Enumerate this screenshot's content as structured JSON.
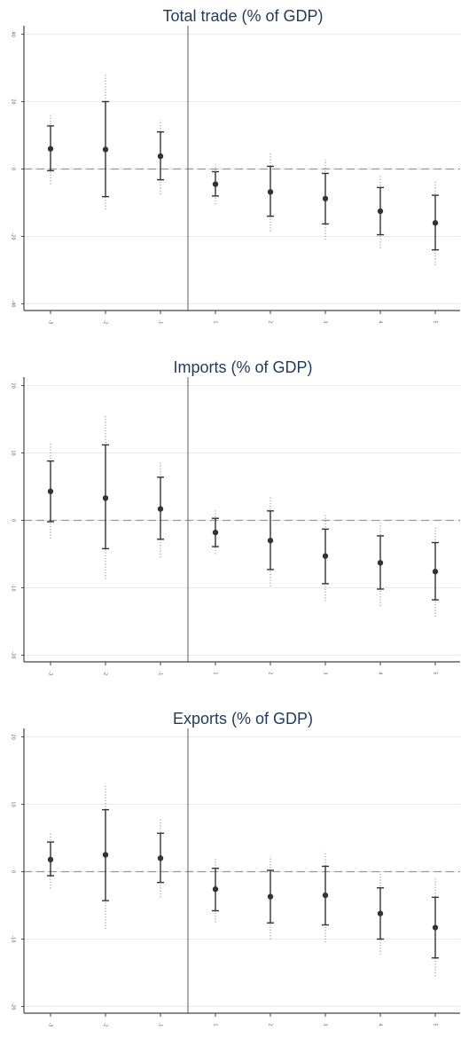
{
  "chart_data": [
    {
      "type": "scatter",
      "title": "Total trade  (% of GDP)",
      "x_ticks": [
        "-3",
        "-2",
        "-1",
        "1",
        "2",
        "3",
        "4",
        "5"
      ],
      "ylim": [
        -42,
        42
      ],
      "y_ticks": [
        40,
        20,
        0,
        -20,
        -40
      ],
      "y_tick_labels": [
        "40",
        "20",
        "0",
        "-20",
        "-40"
      ],
      "reference_line": 0,
      "event_line": "between -1 and 1",
      "grid": true,
      "series": [
        {
          "estimate": [
            6.0,
            5.8,
            3.8,
            -4.5,
            -6.8,
            -8.8,
            -12.5,
            -16.0
          ],
          "ci_inner": [
            [
              -0.5,
              12.8
            ],
            [
              -8.2,
              20.0
            ],
            [
              -3.2,
              11.0
            ],
            [
              -8.0,
              -0.8
            ],
            [
              -14.0,
              0.8
            ],
            [
              -16.3,
              -1.3
            ],
            [
              -19.5,
              -5.5
            ],
            [
              -24.0,
              -7.8
            ]
          ],
          "ci_outer": [
            [
              -4.5,
              16.0
            ],
            [
              -12.0,
              28.5
            ],
            [
              -7.5,
              14.5
            ],
            [
              -10.5,
              1.5
            ],
            [
              -18.5,
              5.0
            ],
            [
              -21.0,
              2.8
            ],
            [
              -23.5,
              -1.5
            ],
            [
              -28.5,
              -3.5
            ]
          ]
        }
      ]
    },
    {
      "type": "scatter",
      "title": "Imports  (% of GDP)",
      "x_ticks": [
        "-3",
        "-2",
        "-1",
        "1",
        "2",
        "3",
        "4",
        "5"
      ],
      "ylim": [
        -21,
        21
      ],
      "y_ticks": [
        20,
        10,
        0,
        -10,
        -20
      ],
      "y_tick_labels": [
        "20",
        "10",
        "0",
        "-10",
        "-20"
      ],
      "reference_line": 0,
      "event_line": "between -1 and 1",
      "grid": true,
      "series": [
        {
          "estimate": [
            4.3,
            3.3,
            1.7,
            -1.8,
            -3.0,
            -5.3,
            -6.3,
            -7.6
          ],
          "ci_inner": [
            [
              -0.2,
              8.8
            ],
            [
              -4.2,
              11.2
            ],
            [
              -2.8,
              6.4
            ],
            [
              -3.9,
              0.3
            ],
            [
              -7.3,
              1.4
            ],
            [
              -9.4,
              -1.3
            ],
            [
              -10.2,
              -2.3
            ],
            [
              -11.8,
              -3.3
            ]
          ],
          "ci_outer": [
            [
              -2.7,
              11.5
            ],
            [
              -8.7,
              15.5
            ],
            [
              -5.5,
              8.8
            ],
            [
              -5.0,
              1.5
            ],
            [
              -9.8,
              3.7
            ],
            [
              -12.0,
              1.0
            ],
            [
              -12.7,
              0.0
            ],
            [
              -14.3,
              -1.0
            ]
          ]
        }
      ]
    },
    {
      "type": "scatter",
      "title": "Exports  (% of GDP)",
      "x_ticks": [
        "-3",
        "-2",
        "-1",
        "1",
        "2",
        "3",
        "4",
        "5"
      ],
      "ylim": [
        -21,
        21
      ],
      "y_ticks": [
        20,
        10,
        0,
        -10,
        -20
      ],
      "y_tick_labels": [
        "20",
        "10",
        "0",
        "-10",
        "-20"
      ],
      "reference_line": 0,
      "event_line": "between -1 and 1",
      "grid": true,
      "series": [
        {
          "estimate": [
            1.8,
            2.5,
            2.0,
            -2.6,
            -3.7,
            -3.5,
            -6.2,
            -8.3
          ],
          "ci_inner": [
            [
              -0.6,
              4.4
            ],
            [
              -4.3,
              9.2
            ],
            [
              -1.6,
              5.7
            ],
            [
              -5.8,
              0.5
            ],
            [
              -7.6,
              0.2
            ],
            [
              -7.9,
              0.8
            ],
            [
              -10.0,
              -2.4
            ],
            [
              -12.8,
              -3.8
            ]
          ],
          "ci_outer": [
            [
              -2.5,
              5.8
            ],
            [
              -8.5,
              13.0
            ],
            [
              -3.8,
              7.8
            ],
            [
              -7.5,
              2.0
            ],
            [
              -10.0,
              2.3
            ],
            [
              -10.5,
              3.0
            ],
            [
              -12.3,
              0.0
            ],
            [
              -15.5,
              -1.0
            ]
          ]
        }
      ]
    }
  ],
  "colors": {
    "title": "#1f3a5f",
    "marker": "#333333",
    "axis": "#444444",
    "grid": "#e8e8e8",
    "reference_line": "#999999",
    "event_line": "#777777"
  }
}
